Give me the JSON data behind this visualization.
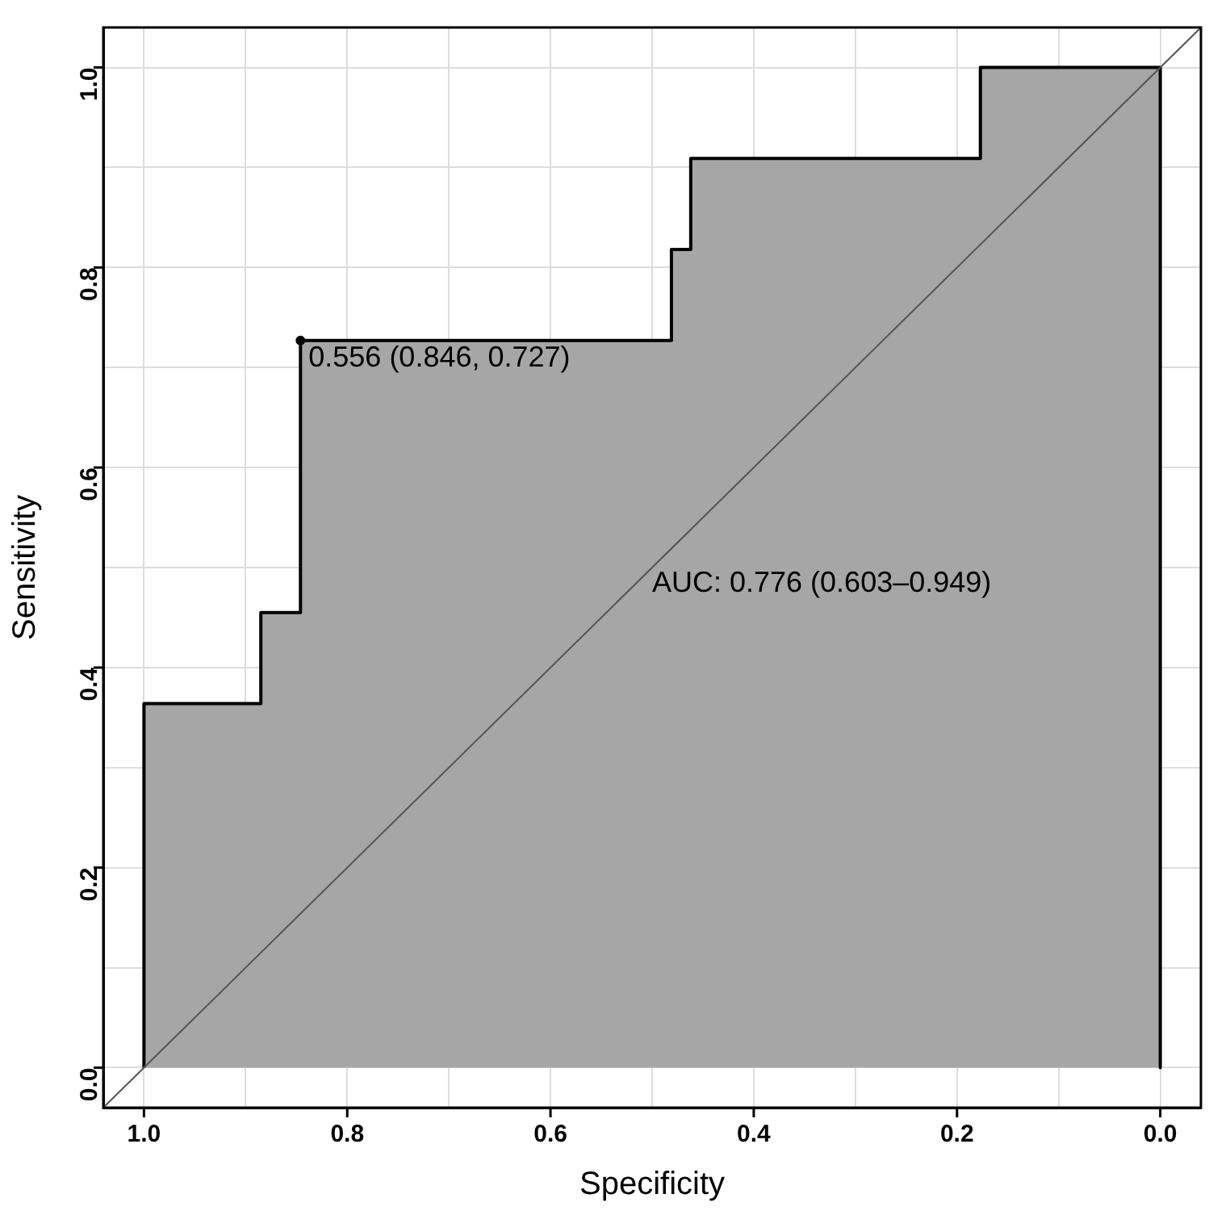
{
  "chart_data": {
    "type": "area",
    "xlabel": "Specificity",
    "ylabel": "Sensitivity",
    "xlim": [
      1.04,
      -0.04
    ],
    "ylim": [
      -0.04,
      1.04
    ],
    "xticks": [
      {
        "value": 1.0,
        "label": "1.0"
      },
      {
        "value": 0.9,
        "label": null
      },
      {
        "value": 0.8,
        "label": "0.8"
      },
      {
        "value": 0.7,
        "label": null
      },
      {
        "value": 0.6,
        "label": "0.6"
      },
      {
        "value": 0.5,
        "label": null
      },
      {
        "value": 0.4,
        "label": "0.4"
      },
      {
        "value": 0.3,
        "label": null
      },
      {
        "value": 0.2,
        "label": "0.2"
      },
      {
        "value": 0.1,
        "label": null
      },
      {
        "value": 0.0,
        "label": "0.0"
      }
    ],
    "yticks": [
      {
        "value": 0.0,
        "label": "0.0"
      },
      {
        "value": 0.1,
        "label": null
      },
      {
        "value": 0.2,
        "label": "0.2"
      },
      {
        "value": 0.3,
        "label": null
      },
      {
        "value": 0.4,
        "label": "0.4"
      },
      {
        "value": 0.5,
        "label": null
      },
      {
        "value": 0.6,
        "label": "0.6"
      },
      {
        "value": 0.7,
        "label": null
      },
      {
        "value": 0.8,
        "label": "0.8"
      },
      {
        "value": 0.9,
        "label": null
      },
      {
        "value": 1.0,
        "label": "1.0"
      }
    ],
    "grid": true,
    "legend": false,
    "series": [
      {
        "color": "#a6a6a6",
        "x": [
          1,
          1,
          0.885,
          0.885,
          0.846,
          0.846,
          0.481,
          0.481,
          0.462,
          0.462,
          0.177,
          0.177,
          0,
          0
        ],
        "values": [
          0,
          0.364,
          0.364,
          0.455,
          0.455,
          0.727,
          0.727,
          0.818,
          0.818,
          0.909,
          0.909,
          1,
          1,
          0
        ]
      },
      {
        "type": "line",
        "color": "#555555",
        "x": [
          1.04,
          -0.04
        ],
        "values": [
          -0.04,
          1.04
        ]
      },
      {
        "type": "scatter",
        "color": "#000000",
        "x": [
          0.846
        ],
        "values": [
          0.727
        ]
      }
    ],
    "annotations": [
      {
        "text": "0.556 (0.846, 0.727)",
        "x": 0.846,
        "y": 0.727
      },
      "AUC: 0.776 (0.603–0.949)"
    ]
  }
}
